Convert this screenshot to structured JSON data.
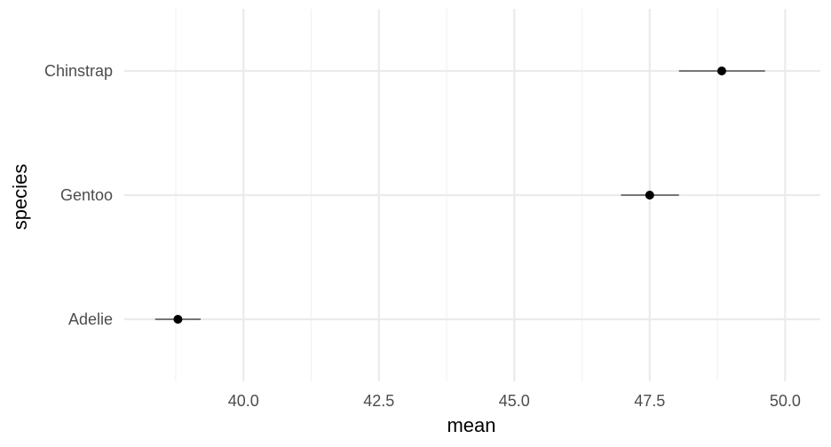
{
  "chart_data": {
    "type": "scatter",
    "subtype": "pointrange",
    "title": "",
    "xlabel": "mean",
    "ylabel": "species",
    "categories": [
      "Adelie",
      "Gentoo",
      "Chinstrap"
    ],
    "series": [
      {
        "points": [
          {
            "category": "Adelie",
            "mean": 38.79,
            "low": 38.37,
            "high": 39.21
          },
          {
            "category": "Gentoo",
            "mean": 47.5,
            "low": 46.97,
            "high": 48.04
          },
          {
            "category": "Chinstrap",
            "mean": 48.83,
            "low": 48.04,
            "high": 49.63
          }
        ]
      }
    ],
    "x_ticks": [
      "40.0",
      "42.5",
      "45.0",
      "47.5",
      "50.0"
    ],
    "xlim": [
      37.8,
      50.65
    ],
    "grid": true,
    "colors": {
      "grid": "#ebebeb",
      "points": "#000000",
      "tick_text": "#4d4d4d"
    }
  }
}
